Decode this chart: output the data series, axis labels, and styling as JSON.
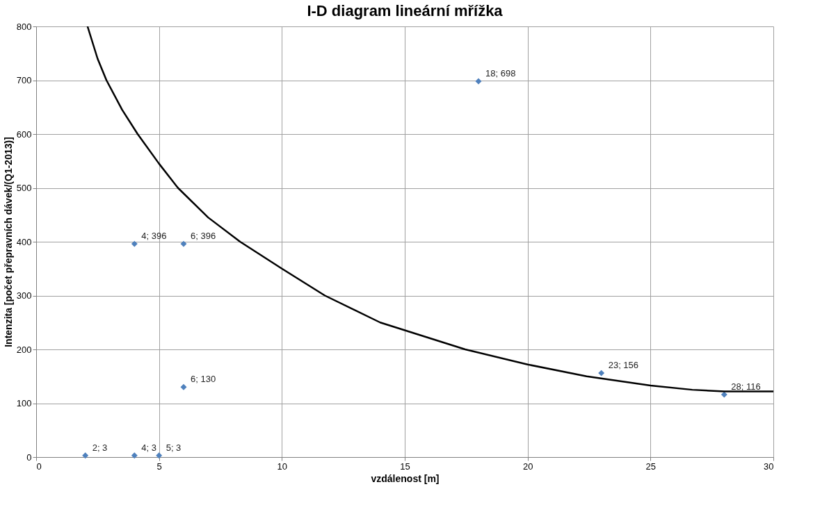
{
  "chart_data": {
    "type": "scatter",
    "title": "I-D diagram lineární mřížka",
    "xlabel": "vzdálenost [m]",
    "ylabel": "Intenzita [počet přepravních dávek/(Q1-2013)]",
    "xlim": [
      0,
      30
    ],
    "xticks": [
      0,
      5,
      10,
      15,
      20,
      25,
      30
    ],
    "ylim": [
      0,
      800
    ],
    "yticks": [
      0,
      100,
      200,
      300,
      400,
      500,
      600,
      700,
      800
    ],
    "grid": true,
    "series": [
      {
        "color": "#4f81bd",
        "marker": "diamond",
        "x": [
          2,
          4,
          5,
          4,
          6,
          6,
          18,
          23,
          28
        ],
        "values": [
          3,
          3,
          3,
          396,
          396,
          130,
          698,
          156,
          116
        ],
        "value_labels": [
          "2; 3",
          "4; 3",
          "5; 3",
          "4; 396",
          "6; 396",
          "6; 130",
          "18; 698",
          "23; 156",
          "28; 116"
        ]
      },
      {
        "type": "line",
        "color": "#000000",
        "marker": "none",
        "x": [
          2.09,
          2.5,
          2.86,
          3.5,
          4.13,
          5,
          5.77,
          7,
          8.3,
          10,
          11.75,
          14,
          17.46,
          20,
          22.4,
          25,
          26.7,
          28,
          30
        ],
        "values": [
          800,
          740,
          700,
          645,
          600,
          545,
          500,
          445,
          400,
          350,
          300,
          250,
          200,
          172,
          150,
          133,
          125,
          122,
          122
        ]
      }
    ]
  }
}
